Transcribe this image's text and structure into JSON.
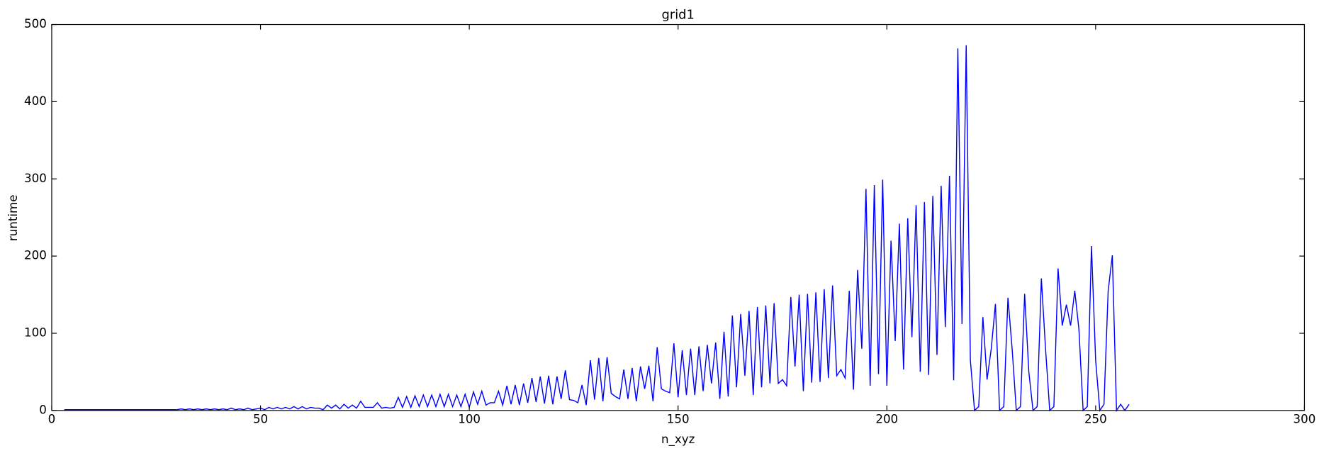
{
  "chart_data": {
    "type": "line",
    "title": "grid1",
    "x_label": "n_xyz",
    "y_label": "runtime",
    "xlim": [
      0,
      300
    ],
    "xticks": [
      0,
      50,
      100,
      150,
      200,
      250,
      300
    ],
    "ylim": [
      0,
      500
    ],
    "yticks": [
      0,
      100,
      200,
      300,
      400,
      500
    ],
    "series": [
      {
        "color": "#0000ff",
        "x": [
          3,
          4,
          5,
          6,
          7,
          8,
          9,
          10,
          11,
          12,
          13,
          14,
          15,
          16,
          17,
          18,
          19,
          20,
          21,
          22,
          23,
          24,
          25,
          26,
          27,
          28,
          29,
          30,
          31,
          32,
          33,
          34,
          35,
          36,
          37,
          38,
          39,
          40,
          41,
          42,
          43,
          44,
          45,
          46,
          47,
          48,
          49,
          50,
          51,
          52,
          53,
          54,
          55,
          56,
          57,
          58,
          59,
          60,
          61,
          62,
          63,
          64,
          65,
          66,
          67,
          68,
          69,
          70,
          71,
          72,
          73,
          74,
          75,
          76,
          77,
          78,
          79,
          80,
          81,
          82,
          83,
          84,
          85,
          86,
          87,
          88,
          89,
          90,
          91,
          92,
          93,
          94,
          95,
          96,
          97,
          98,
          99,
          100,
          101,
          102,
          103,
          104,
          105,
          106,
          107,
          108,
          109,
          110,
          111,
          112,
          113,
          114,
          115,
          116,
          117,
          118,
          119,
          120,
          121,
          122,
          123,
          124,
          125,
          126,
          127,
          128,
          129,
          130,
          131,
          132,
          133,
          134,
          135,
          136,
          137,
          138,
          139,
          140,
          141,
          142,
          143,
          144,
          145,
          146,
          147,
          148,
          149,
          150,
          151,
          152,
          153,
          154,
          155,
          156,
          157,
          158,
          159,
          160,
          161,
          162,
          163,
          164,
          165,
          166,
          167,
          168,
          169,
          170,
          171,
          172,
          173,
          174,
          175,
          176,
          177,
          178,
          179,
          180,
          181,
          182,
          183,
          184,
          185,
          186,
          187,
          188,
          189,
          190,
          191,
          192,
          193,
          194,
          195,
          196,
          197,
          198,
          199,
          200,
          201,
          202,
          203,
          204,
          205,
          206,
          207,
          208,
          209,
          210,
          211,
          212,
          213,
          214,
          215,
          216,
          217,
          218,
          219,
          220,
          221,
          222,
          223,
          224,
          225,
          226,
          227,
          228,
          229,
          230,
          231,
          232,
          233,
          234,
          235,
          236,
          237,
          238,
          239,
          240,
          241,
          242,
          243,
          244,
          245,
          246,
          247,
          248,
          249,
          250,
          251,
          252,
          253,
          254,
          255,
          256,
          257,
          258
        ],
        "values": [
          1,
          1,
          1,
          1,
          1,
          1,
          1,
          1,
          1,
          1,
          1,
          1,
          1,
          1,
          1,
          1,
          1,
          1,
          1,
          1,
          1,
          1,
          1,
          1,
          1,
          1,
          1,
          1,
          2,
          1,
          2,
          1,
          2,
          1,
          2,
          1,
          2,
          1,
          2,
          1,
          3,
          1,
          2,
          1,
          3,
          1,
          2,
          3,
          1,
          4,
          2,
          4,
          2,
          4,
          2,
          5,
          2,
          5,
          2,
          4,
          3,
          3,
          1,
          7,
          3,
          7,
          2,
          8,
          3,
          7,
          3,
          12,
          4,
          4,
          4,
          10,
          3,
          4,
          3,
          4,
          17,
          4,
          18,
          4,
          19,
          5,
          20,
          5,
          20,
          5,
          21,
          5,
          21,
          5,
          20,
          5,
          21,
          4,
          24,
          8,
          25,
          7,
          10,
          10,
          25,
          7,
          32,
          8,
          33,
          7,
          35,
          10,
          42,
          11,
          44,
          9,
          45,
          8,
          44,
          15,
          52,
          14,
          13,
          10,
          33,
          7,
          65,
          14,
          68,
          12,
          69,
          22,
          18,
          15,
          53,
          15,
          55,
          12,
          57,
          28,
          58,
          12,
          82,
          28,
          25,
          23,
          87,
          17,
          78,
          20,
          80,
          20,
          83,
          25,
          85,
          35,
          88,
          15,
          102,
          18,
          123,
          30,
          125,
          45,
          129,
          20,
          134,
          30,
          136,
          35,
          139,
          35,
          40,
          32,
          147,
          57,
          150,
          25,
          151,
          36,
          153,
          37,
          157,
          42,
          162,
          45,
          53,
          42,
          155,
          27,
          182,
          80,
          287,
          32,
          292,
          47,
          299,
          32,
          220,
          90,
          242,
          53,
          249,
          95,
          266,
          50,
          270,
          46,
          278,
          72,
          291,
          108,
          304,
          39,
          469,
          112,
          473,
          65,
          0,
          5,
          121,
          40,
          80,
          138,
          0,
          5,
          146,
          80,
          0,
          5,
          151,
          50,
          0,
          5,
          171,
          80,
          0,
          5,
          184,
          110,
          137,
          110,
          155,
          105,
          0,
          5,
          213,
          65,
          0,
          8,
          155,
          201,
          0,
          8,
          0,
          8
        ]
      }
    ]
  }
}
